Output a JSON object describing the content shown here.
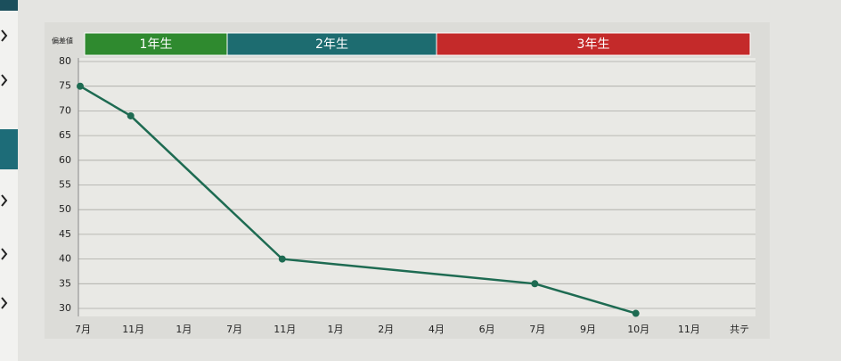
{
  "chart_data": {
    "type": "line",
    "y_label": "偏差値",
    "grades": [
      {
        "label": "1年生",
        "color": "#2f8a2f"
      },
      {
        "label": "2年生",
        "color": "#1d6c70"
      },
      {
        "label": "3年生",
        "color": "#c42a2a"
      }
    ],
    "categories": [
      "7月",
      "11月",
      "1月",
      "7月",
      "11月",
      "1月",
      "2月",
      "4月",
      "6月",
      "7月",
      "9月",
      "10月",
      "11月",
      "共テ"
    ],
    "series": [
      {
        "name": "偏差値",
        "color": "#1e6b52",
        "values": [
          75,
          69,
          null,
          null,
          40,
          null,
          null,
          null,
          null,
          35,
          null,
          29,
          null,
          null
        ]
      }
    ],
    "connect_gaps": true,
    "ylim": [
      30,
      80
    ],
    "yticks": [
      30,
      35,
      40,
      45,
      50,
      55,
      60,
      65,
      70,
      75,
      80
    ],
    "grid": true
  }
}
